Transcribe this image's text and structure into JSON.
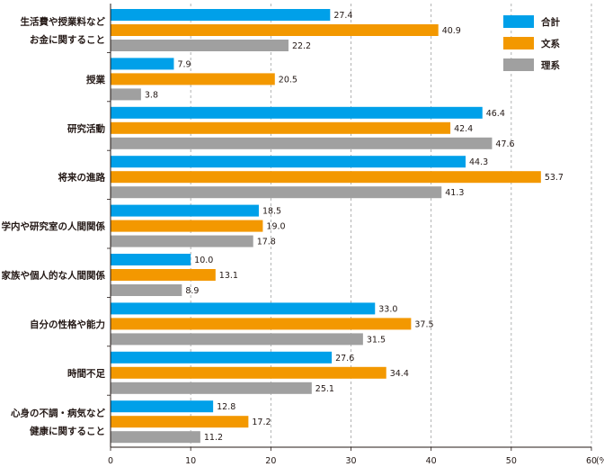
{
  "chart_data": {
    "type": "bar",
    "orientation": "horizontal",
    "categories": [
      [
        "生活費や授業料など",
        "お金に関すること"
      ],
      [
        "授業"
      ],
      [
        "研究活動"
      ],
      [
        "将来の進路"
      ],
      [
        "学内や研究室の人間関係"
      ],
      [
        "家族や個人的な人間関係"
      ],
      [
        "自分の性格や能力"
      ],
      [
        "時間不足"
      ],
      [
        "心身の不調・病気など",
        "健康に関すること"
      ]
    ],
    "series": [
      {
        "name": "合計",
        "color": "#00a0e9",
        "values": [
          27.4,
          7.9,
          46.4,
          44.3,
          18.5,
          10.0,
          33.0,
          27.6,
          12.8
        ],
        "labels": [
          "27.4",
          "7.9",
          "46.4",
          "44.3",
          "18.5",
          "10.0",
          "33.0",
          "27.6",
          "12.8"
        ]
      },
      {
        "name": "文系",
        "color": "#f39800",
        "values": [
          40.9,
          20.5,
          42.4,
          53.7,
          19.0,
          13.1,
          37.5,
          34.4,
          17.2
        ],
        "labels": [
          "40.9",
          "20.5",
          "42.4",
          "53.7",
          "19.0",
          "13.1",
          "37.5",
          "34.4",
          "17.2"
        ]
      },
      {
        "name": "理系",
        "color": "#a0a0a0",
        "values": [
          22.2,
          3.8,
          47.6,
          41.3,
          17.8,
          8.9,
          31.5,
          25.1,
          11.2
        ],
        "labels": [
          "22.2",
          "3.8",
          "47.6",
          "41.3",
          "17.8",
          "8.9",
          "31.5",
          "25.1",
          "11.2"
        ]
      }
    ],
    "xlim": [
      0,
      60
    ],
    "xticks": [
      "0",
      "10",
      "20",
      "30",
      "40",
      "50",
      "60"
    ],
    "xunit": "(%)",
    "grid": "vertical-dashed",
    "legend_position": "top-right"
  }
}
